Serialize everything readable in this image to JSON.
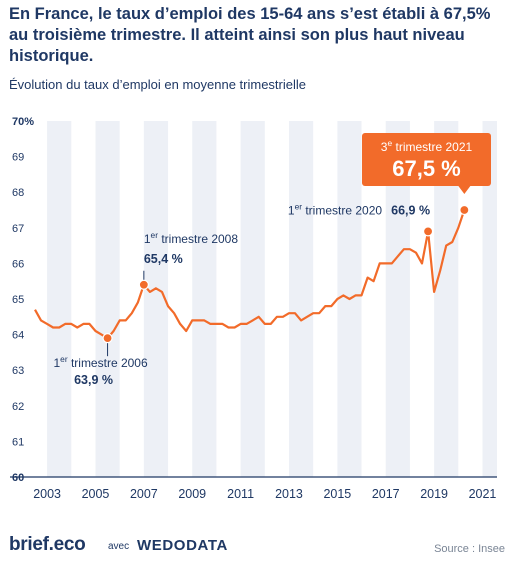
{
  "header": {
    "headline": "En France, le taux d’emploi des 15-64 ans s’est établi à 67,5% au troisième trimestre. Il atteint ainsi son plus haut niveau historique.",
    "subtitle": "Évolution du taux d’emploi en moyenne trimestrielle"
  },
  "footer": {
    "brand": "brief.eco",
    "with": "avec",
    "partner": "WEDODATA",
    "source": "Source : Insee"
  },
  "colors": {
    "line": "#f26b2a",
    "text": "#1f3864",
    "band": "#edf0f6",
    "axis": "#1f3864",
    "highlight_box": "#f26b2a"
  },
  "chart_data": {
    "type": "line",
    "title": "",
    "xlabel": "",
    "ylabel": "",
    "ylim": [
      60,
      70
    ],
    "xlim": [
      2002.5,
      2021.6
    ],
    "y_ticks": [
      "60",
      "61",
      "62",
      "63",
      "64",
      "65",
      "66",
      "67",
      "68",
      "69",
      "70%"
    ],
    "x_ticks": [
      "2003",
      "2005",
      "2007",
      "2009",
      "2011",
      "2013",
      "2015",
      "2017",
      "2019",
      "2021"
    ],
    "grid": false,
    "series": [
      {
        "values": [
          [
            2002.5,
            64.7
          ],
          [
            2002.75,
            64.4
          ],
          [
            2003.0,
            64.3
          ],
          [
            2003.25,
            64.2
          ],
          [
            2003.5,
            64.2
          ],
          [
            2003.75,
            64.3
          ],
          [
            2004.0,
            64.3
          ],
          [
            2004.25,
            64.2
          ],
          [
            2004.5,
            64.3
          ],
          [
            2004.75,
            64.3
          ],
          [
            2005.0,
            64.1
          ],
          [
            2005.25,
            64.0
          ],
          [
            2005.5,
            63.9
          ],
          [
            2005.75,
            64.1
          ],
          [
            2006.0,
            64.4
          ],
          [
            2006.25,
            64.4
          ],
          [
            2006.5,
            64.6
          ],
          [
            2006.75,
            64.9
          ],
          [
            2007.0,
            65.4
          ],
          [
            2007.25,
            65.2
          ],
          [
            2007.5,
            65.3
          ],
          [
            2007.75,
            65.2
          ],
          [
            2008.0,
            64.8
          ],
          [
            2008.25,
            64.6
          ],
          [
            2008.5,
            64.3
          ],
          [
            2008.75,
            64.1
          ],
          [
            2009.0,
            64.4
          ],
          [
            2009.25,
            64.4
          ],
          [
            2009.5,
            64.4
          ],
          [
            2009.75,
            64.3
          ],
          [
            2010.0,
            64.3
          ],
          [
            2010.25,
            64.3
          ],
          [
            2010.5,
            64.2
          ],
          [
            2010.75,
            64.2
          ],
          [
            2011.0,
            64.3
          ],
          [
            2011.25,
            64.3
          ],
          [
            2011.5,
            64.4
          ],
          [
            2011.75,
            64.5
          ],
          [
            2012.0,
            64.3
          ],
          [
            2012.25,
            64.3
          ],
          [
            2012.5,
            64.5
          ],
          [
            2012.75,
            64.5
          ],
          [
            2013.0,
            64.6
          ],
          [
            2013.25,
            64.6
          ],
          [
            2013.5,
            64.4
          ],
          [
            2013.75,
            64.5
          ],
          [
            2014.0,
            64.6
          ],
          [
            2014.25,
            64.6
          ],
          [
            2014.5,
            64.8
          ],
          [
            2014.75,
            64.8
          ],
          [
            2015.0,
            65.0
          ],
          [
            2015.25,
            65.1
          ],
          [
            2015.5,
            65.0
          ],
          [
            2015.75,
            65.1
          ],
          [
            2016.0,
            65.1
          ],
          [
            2016.25,
            65.6
          ],
          [
            2016.5,
            65.5
          ],
          [
            2016.75,
            66.0
          ],
          [
            2017.0,
            66.0
          ],
          [
            2017.25,
            66.0
          ],
          [
            2017.5,
            66.2
          ],
          [
            2017.75,
            66.4
          ],
          [
            2018.0,
            66.4
          ],
          [
            2018.25,
            66.3
          ],
          [
            2018.5,
            66.0
          ],
          [
            2018.75,
            66.9
          ],
          [
            2019.0,
            65.2
          ],
          [
            2019.25,
            65.8
          ],
          [
            2019.5,
            66.5
          ],
          [
            2019.75,
            66.6
          ],
          [
            2020.0,
            67.0
          ],
          [
            2020.25,
            67.5
          ]
        ]
      }
    ],
    "annotations": [
      {
        "period_pre": "1",
        "period_sup": "er",
        "period_post": " trimestre 2006",
        "value": "63,9 %",
        "x": 2005.5,
        "y": 63.9
      },
      {
        "period_pre": "1",
        "period_sup": "er",
        "period_post": " trimestre 2008",
        "value": "65,4 %",
        "x": 2007.0,
        "y": 65.4
      },
      {
        "period_pre": "1",
        "period_sup": "er",
        "period_post": " trimestre 2020",
        "value": "66,9 %",
        "x": 2018.75,
        "y": 66.9
      },
      {
        "period_pre": "3",
        "period_sup": "e",
        "period_post": " trimestre 2021",
        "value": "67,5 %",
        "x": 2020.25,
        "y": 67.5,
        "highlight": true
      }
    ]
  }
}
